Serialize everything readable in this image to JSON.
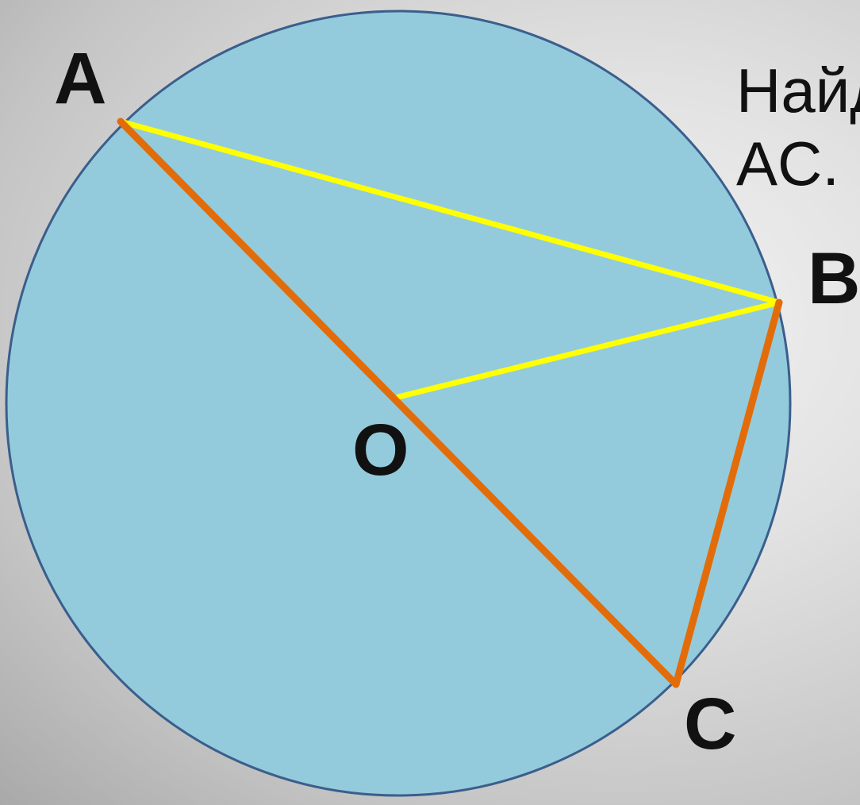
{
  "task": {
    "line1": "Найд",
    "line2": "AC."
  },
  "points": {
    "A": "A",
    "B": "B",
    "C": "C",
    "O": "O"
  },
  "colors": {
    "circle_fill": "#93cbdc",
    "circle_stroke": "#3b5e8c",
    "yellow_segment": "#ffff00",
    "orange_segment": "#e36c0a",
    "label": "#111111"
  }
}
